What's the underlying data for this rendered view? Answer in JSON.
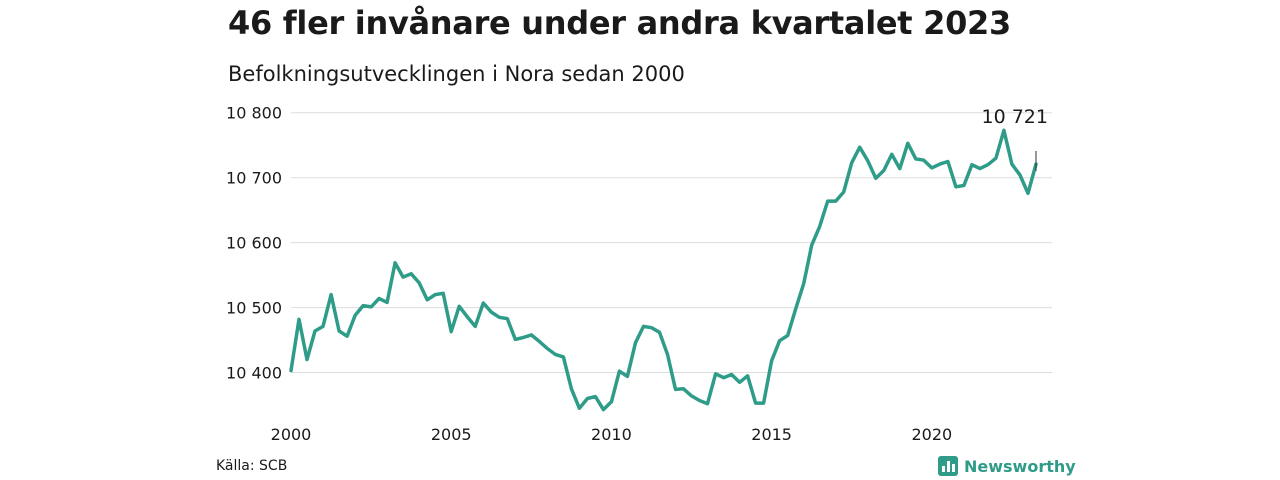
{
  "header": {
    "title": "46 fler invånare under andra kvartalet 2023",
    "subtitle": "Befolkningsutvecklingen i Nora sedan 2000"
  },
  "footer": {
    "source": "Källa: SCB",
    "brand": "Newsworthy",
    "brand_icon": "newsworthy-logo-icon"
  },
  "colors": {
    "line": "#2e9c88",
    "grid": "#dddddd",
    "brand": "#2e9c88"
  },
  "chart_data": {
    "type": "line",
    "title": "46 fler invånare under andra kvartalet 2023",
    "subtitle": "Befolkningsutvecklingen i Nora sedan 2000",
    "xlabel": "",
    "ylabel": "",
    "xlim": [
      2000,
      2023.75
    ],
    "ylim": [
      10330,
      10815
    ],
    "x_ticks": [
      2000,
      2005,
      2010,
      2015,
      2020
    ],
    "x_tick_labels": [
      "2000",
      "2005",
      "2010",
      "2015",
      "2020"
    ],
    "y_ticks": [
      10400,
      10500,
      10600,
      10700,
      10800
    ],
    "y_tick_labels": [
      "10 400",
      "10 500",
      "10 600",
      "10 700",
      "10 800"
    ],
    "grid": true,
    "annotation": {
      "label": "10 721",
      "x": 2023.25,
      "y": 10721
    },
    "series": [
      {
        "x": [
          2000.0,
          2000.25,
          2000.5,
          2000.75,
          2001.0,
          2001.25,
          2001.5,
          2001.75,
          2002.0,
          2002.25,
          2002.5,
          2002.75,
          2003.0,
          2003.25,
          2003.5,
          2003.75,
          2004.0,
          2004.25,
          2004.5,
          2004.75,
          2005.0,
          2005.25,
          2005.5,
          2005.75,
          2006.0,
          2006.25,
          2006.5,
          2006.75,
          2007.0,
          2007.25,
          2007.5,
          2007.75,
          2008.0,
          2008.25,
          2008.5,
          2008.75,
          2009.0,
          2009.25,
          2009.5,
          2009.75,
          2010.0,
          2010.25,
          2010.5,
          2010.75,
          2011.0,
          2011.25,
          2011.5,
          2011.75,
          2012.0,
          2012.25,
          2012.5,
          2012.75,
          2013.0,
          2013.25,
          2013.5,
          2013.75,
          2014.0,
          2014.25,
          2014.5,
          2014.75,
          2015.0,
          2015.25,
          2015.5,
          2015.75,
          2016.0,
          2016.25,
          2016.5,
          2016.75,
          2017.0,
          2017.25,
          2017.5,
          2017.75,
          2018.0,
          2018.25,
          2018.5,
          2018.75,
          2019.0,
          2019.25,
          2019.5,
          2019.75,
          2020.0,
          2020.25,
          2020.5,
          2020.75,
          2021.0,
          2021.25,
          2021.5,
          2021.75,
          2022.0,
          2022.25,
          2022.5,
          2022.75,
          2023.0,
          2023.25
        ],
        "values": [
          10403,
          10482,
          10420,
          10464,
          10471,
          10520,
          10464,
          10456,
          10488,
          10503,
          10501,
          10514,
          10508,
          10569,
          10547,
          10552,
          10538,
          10512,
          10520,
          10522,
          10463,
          10502,
          10486,
          10471,
          10507,
          10493,
          10485,
          10483,
          10451,
          10454,
          10458,
          10448,
          10437,
          10428,
          10424,
          10375,
          10345,
          10360,
          10363,
          10343,
          10355,
          10402,
          10394,
          10446,
          10471,
          10469,
          10462,
          10428,
          10374,
          10375,
          10364,
          10357,
          10352,
          10398,
          10392,
          10397,
          10385,
          10395,
          10353,
          10353,
          10418,
          10449,
          10457,
          10498,
          10537,
          10596,
          10625,
          10664,
          10664,
          10678,
          10723,
          10747,
          10726,
          10699,
          10711,
          10736,
          10714,
          10753,
          10729,
          10727,
          10715,
          10721,
          10725,
          10686,
          10688,
          10720,
          10714,
          10720,
          10730,
          10773,
          10721,
          10704,
          10676,
          10721
        ]
      }
    ]
  }
}
